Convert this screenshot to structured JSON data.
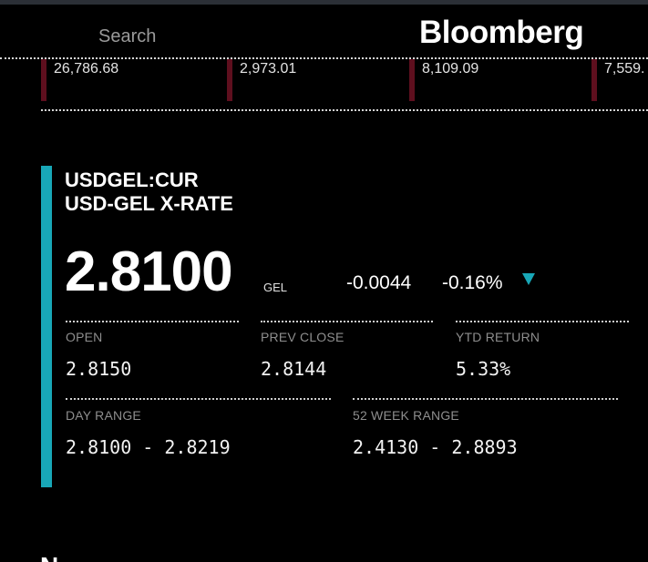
{
  "header": {
    "search_label": "Search",
    "logo_text": "Bloomberg"
  },
  "ticker_strip": [
    {
      "value": "26,786.68"
    },
    {
      "value": "2,973.01"
    },
    {
      "value": "8,109.09"
    },
    {
      "value": "7,559."
    }
  ],
  "quote": {
    "ticker": "USDGEL:CUR",
    "name": "USD-GEL X-RATE",
    "price": "2.8100",
    "currency": "GEL",
    "change_abs": "-0.0044",
    "change_pct": "-0.16%",
    "direction_icon": "triangle-down-icon",
    "accent_color": "#18a7b7",
    "ticker_bar_color": "#5e0f1e"
  },
  "stats": {
    "open": {
      "label": "OPEN",
      "value": "2.8150"
    },
    "prev_close": {
      "label": "PREV CLOSE",
      "value": "2.8144"
    },
    "ytd_return": {
      "label": "YTD RETURN",
      "value": "5.33%"
    },
    "day_range": {
      "label": "DAY RANGE",
      "value": "2.8100 - 2.8219"
    },
    "week52_range": {
      "label": "52 WEEK RANGE",
      "value": "2.4130 - 2.8893"
    }
  },
  "next_section": {
    "heading_fragment": "N"
  }
}
